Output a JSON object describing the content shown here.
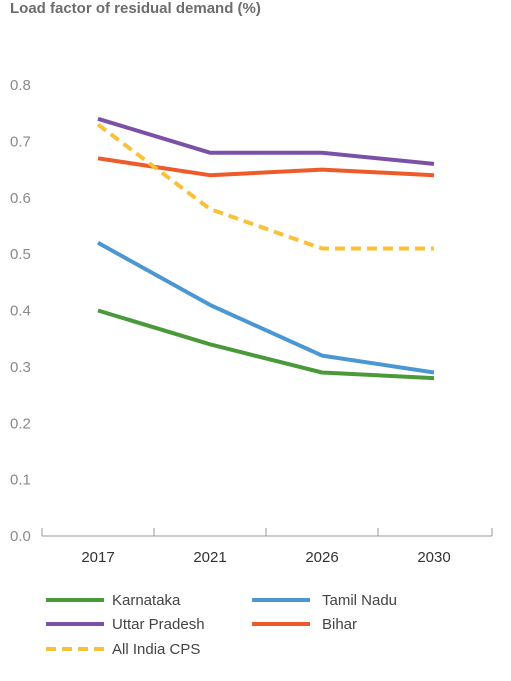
{
  "chart_data": {
    "type": "line",
    "title": "Load factor of residual demand (%)",
    "categories": [
      "2017",
      "2021",
      "2026",
      "2030"
    ],
    "ylim": [
      0,
      0.8
    ],
    "yticks": [
      "0.0",
      "0.1",
      "0.2",
      "0.3",
      "0.4",
      "0.5",
      "0.6",
      "0.7",
      "0.8"
    ],
    "series": [
      {
        "name": "Karnataka",
        "values": [
          0.4,
          0.34,
          0.29,
          0.28
        ],
        "color": "#4a9a3a",
        "dashed": false
      },
      {
        "name": "Tamil Nadu",
        "values": [
          0.52,
          0.41,
          0.32,
          0.29
        ],
        "color": "#4a97d4",
        "dashed": false
      },
      {
        "name": "Uttar Pradesh",
        "values": [
          0.74,
          0.68,
          0.68,
          0.66
        ],
        "color": "#7b51a8",
        "dashed": false
      },
      {
        "name": "Bihar",
        "values": [
          0.67,
          0.64,
          0.65,
          0.64
        ],
        "color": "#ee5a2a",
        "dashed": false
      },
      {
        "name": "All India CPS",
        "values": [
          0.73,
          0.58,
          0.51,
          0.51
        ],
        "color": "#f7c238",
        "dashed": true
      }
    ],
    "legend": {
      "position": "bottom",
      "order": [
        "Karnataka",
        "Tamil Nadu",
        "Uttar Pradesh",
        "Bihar",
        "All India CPS"
      ]
    }
  }
}
